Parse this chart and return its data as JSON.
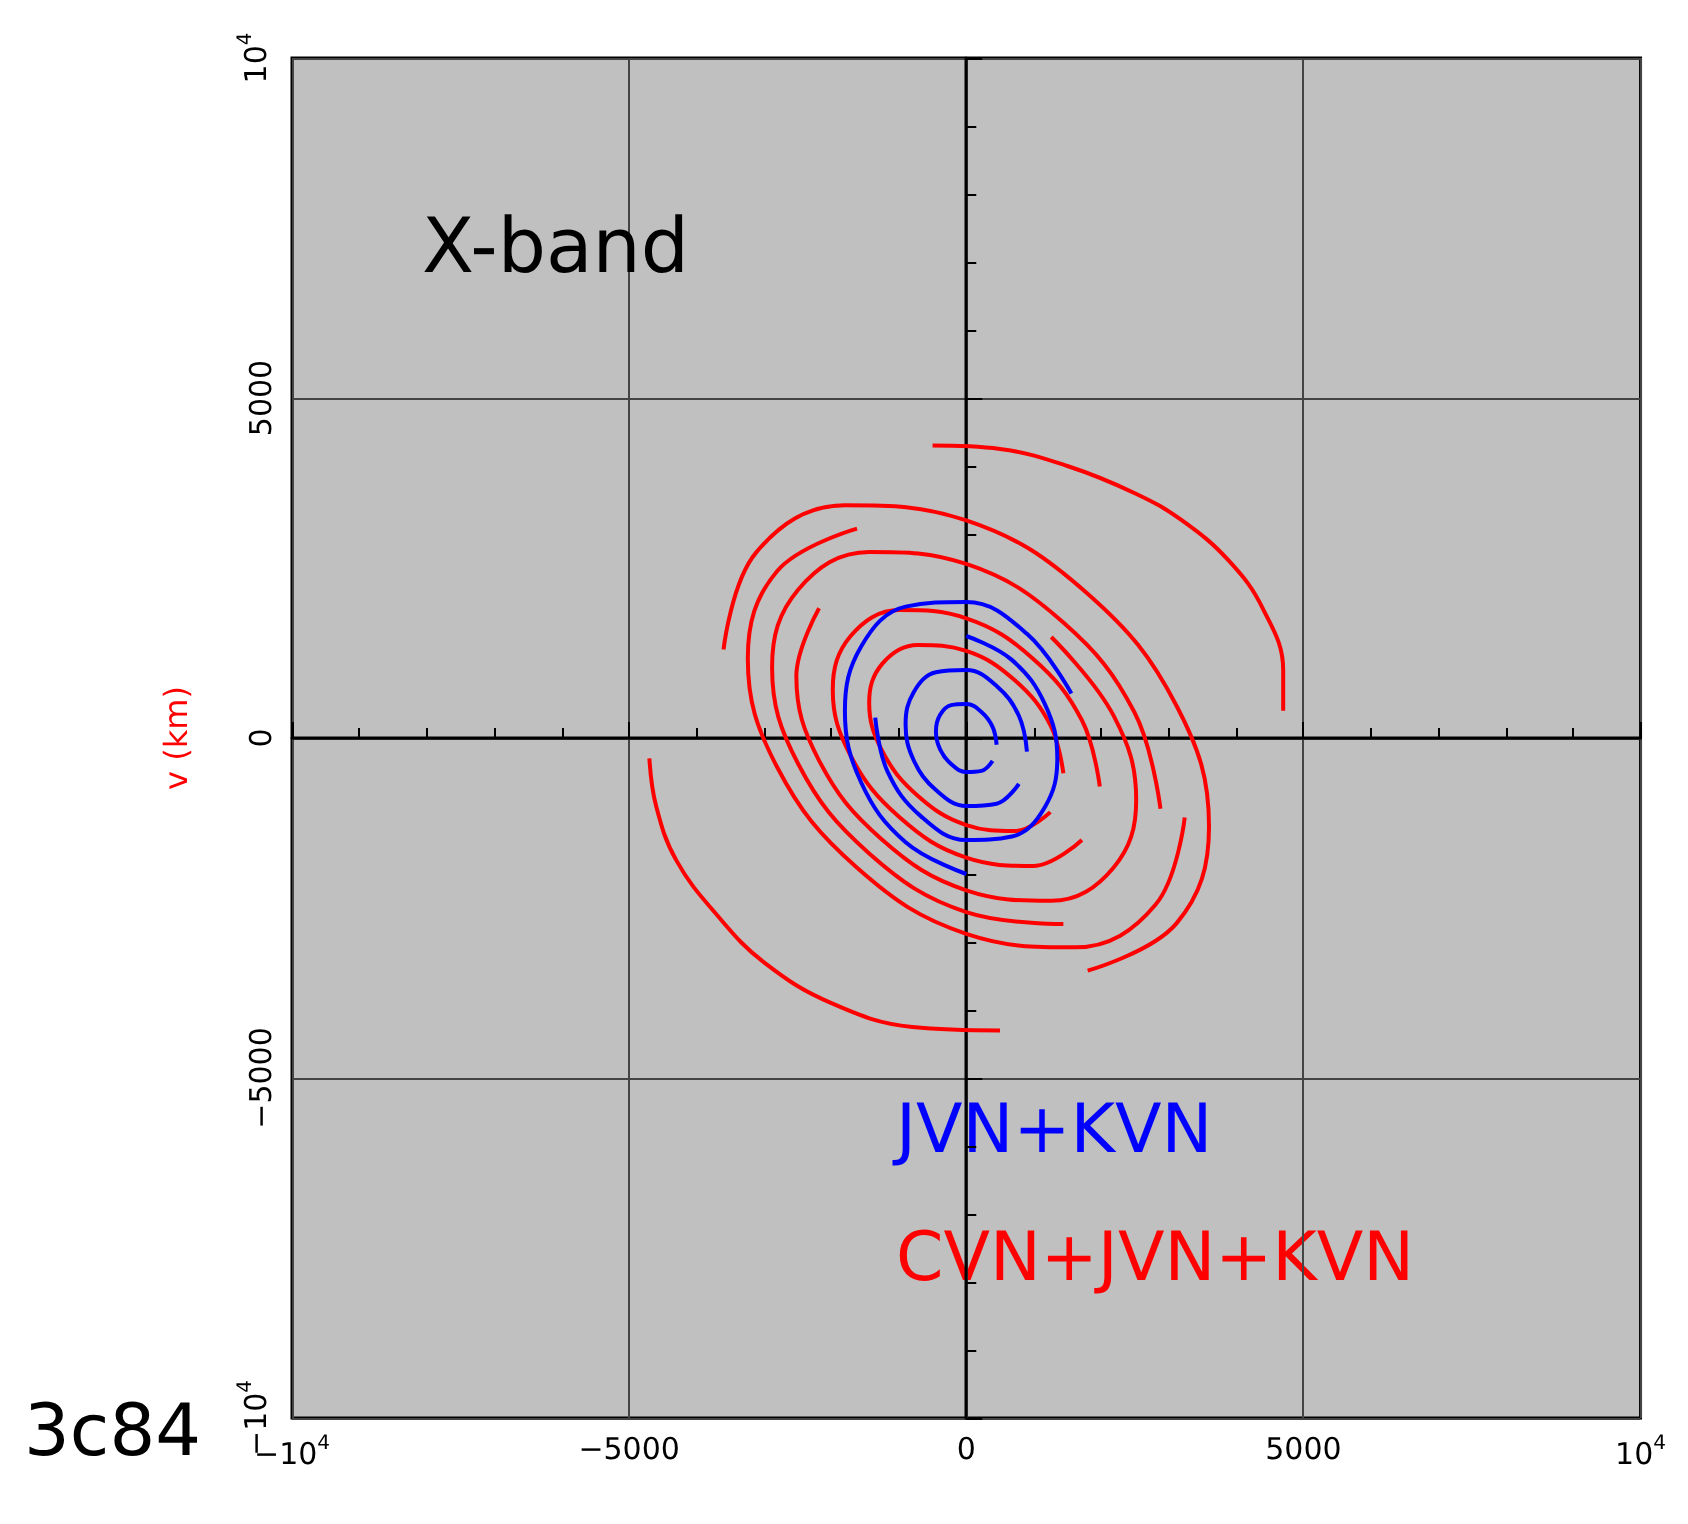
{
  "chart_data": {
    "type": "line",
    "title": "X-band",
    "ylabel": "v (km)",
    "annotations": [
      "3c84"
    ],
    "xlim": [
      -10000,
      10000
    ],
    "ylim": [
      -10000,
      10000
    ],
    "xticks": [
      {
        "value": -10000,
        "label": "−10$^{4}$"
      },
      {
        "value": -5000,
        "label": "−5000"
      },
      0,
      5000,
      {
        "value": 10000,
        "label": "10$^{4}$"
      }
    ],
    "yticks": [
      {
        "value": -10000,
        "label": "−10$^{4}$"
      },
      {
        "value": -5000,
        "label": "−5000"
      },
      0,
      5000,
      {
        "value": 10000,
        "label": "10$^{4}$"
      }
    ],
    "grid": true,
    "series": [
      {
        "name": "CVN+JVN+KVN",
        "color": "#ff0000",
        "x": [
          -500,
          500,
          1500,
          2500,
          3200,
          3900,
          4400,
          4700,
          4700,
          null,
          -4700,
          -4600,
          -4300,
          -3700,
          -3000,
          -2000,
          -800,
          500,
          null,
          1800,
          3118,
          3600,
          3118,
          1800,
          0,
          -1800,
          -3118,
          -3600,
          null,
          -1620,
          -2806,
          -3240,
          -2806,
          -1620,
          0,
          1620,
          2806,
          3240,
          null,
          2880,
          2494,
          1440,
          0,
          -1440,
          -2494,
          -2880,
          -2494,
          -1440,
          0,
          1440,
          null,
          -2183,
          -2520,
          -2183,
          -1260,
          0,
          1260,
          2183,
          2520,
          2183,
          1260,
          null,
          1980,
          1715,
          990,
          0,
          -990,
          -1715,
          -1980,
          -1715,
          -990,
          0,
          990,
          1715,
          null,
          1440,
          1247,
          720,
          0,
          -720,
          -1247,
          -1440,
          -1247,
          -720,
          0,
          720,
          1247
        ],
        "values": [
          4300,
          4250,
          4000,
          3600,
          3200,
          2600,
          1900,
          1000,
          400,
          null,
          -300,
          -1000,
          -1800,
          -2600,
          -3300,
          -3900,
          -4250,
          -4300,
          null,
          -3421,
          -2726,
          -1300,
          474,
          2121,
          3200,
          3421,
          2726,
          1300,
          null,
          3079,
          2453,
          1170,
          -427,
          -1909,
          -2880,
          -3079,
          -2453,
          -1170,
          null,
          -1040,
          379,
          1697,
          2560,
          2737,
          2181,
          1040,
          -379,
          -1697,
          -2560,
          -2737,
          null,
          1908,
          910,
          -332,
          -1485,
          -2240,
          -2395,
          -1908,
          -910,
          332,
          1485,
          null,
          -715,
          261,
          1167,
          1760,
          1882,
          1499,
          715,
          -261,
          -1167,
          -1760,
          -1882,
          -1499,
          null,
          -520,
          190,
          848,
          1280,
          1368,
          1090,
          520,
          -190,
          -848,
          -1280,
          -1368,
          -1090
        ]
      },
      {
        "name": "JVN+KVN",
        "color": "#0000ff",
        "x": [
          1559,
          900,
          0,
          -900,
          -1559,
          -1800,
          -1559,
          -900,
          0,
          null,
          -1350,
          -1169,
          -675,
          0,
          675,
          1169,
          1350,
          1169,
          675,
          0,
          null,
          900,
          780,
          450,
          0,
          -450,
          -780,
          -900,
          -780,
          -450,
          0,
          450,
          780,
          null,
          450,
          390,
          225,
          0,
          -225,
          -390,
          -450,
          -390,
          -225,
          0,
          225,
          390
        ],
        "values": [
          654,
          1532,
          2000,
          1932,
          1346,
          400,
          -654,
          -1532,
          -2000,
          null,
          300,
          -491,
          -1149,
          -1500,
          -1449,
          -1010,
          -300,
          491,
          1149,
          1500,
          null,
          -200,
          327,
          766,
          1000,
          966,
          673,
          200,
          -327,
          -766,
          -1000,
          -966,
          -673,
          null,
          -100,
          164,
          383,
          500,
          483,
          337,
          100,
          -164,
          -383,
          -500,
          -483,
          -337
        ]
      }
    ]
  }
}
